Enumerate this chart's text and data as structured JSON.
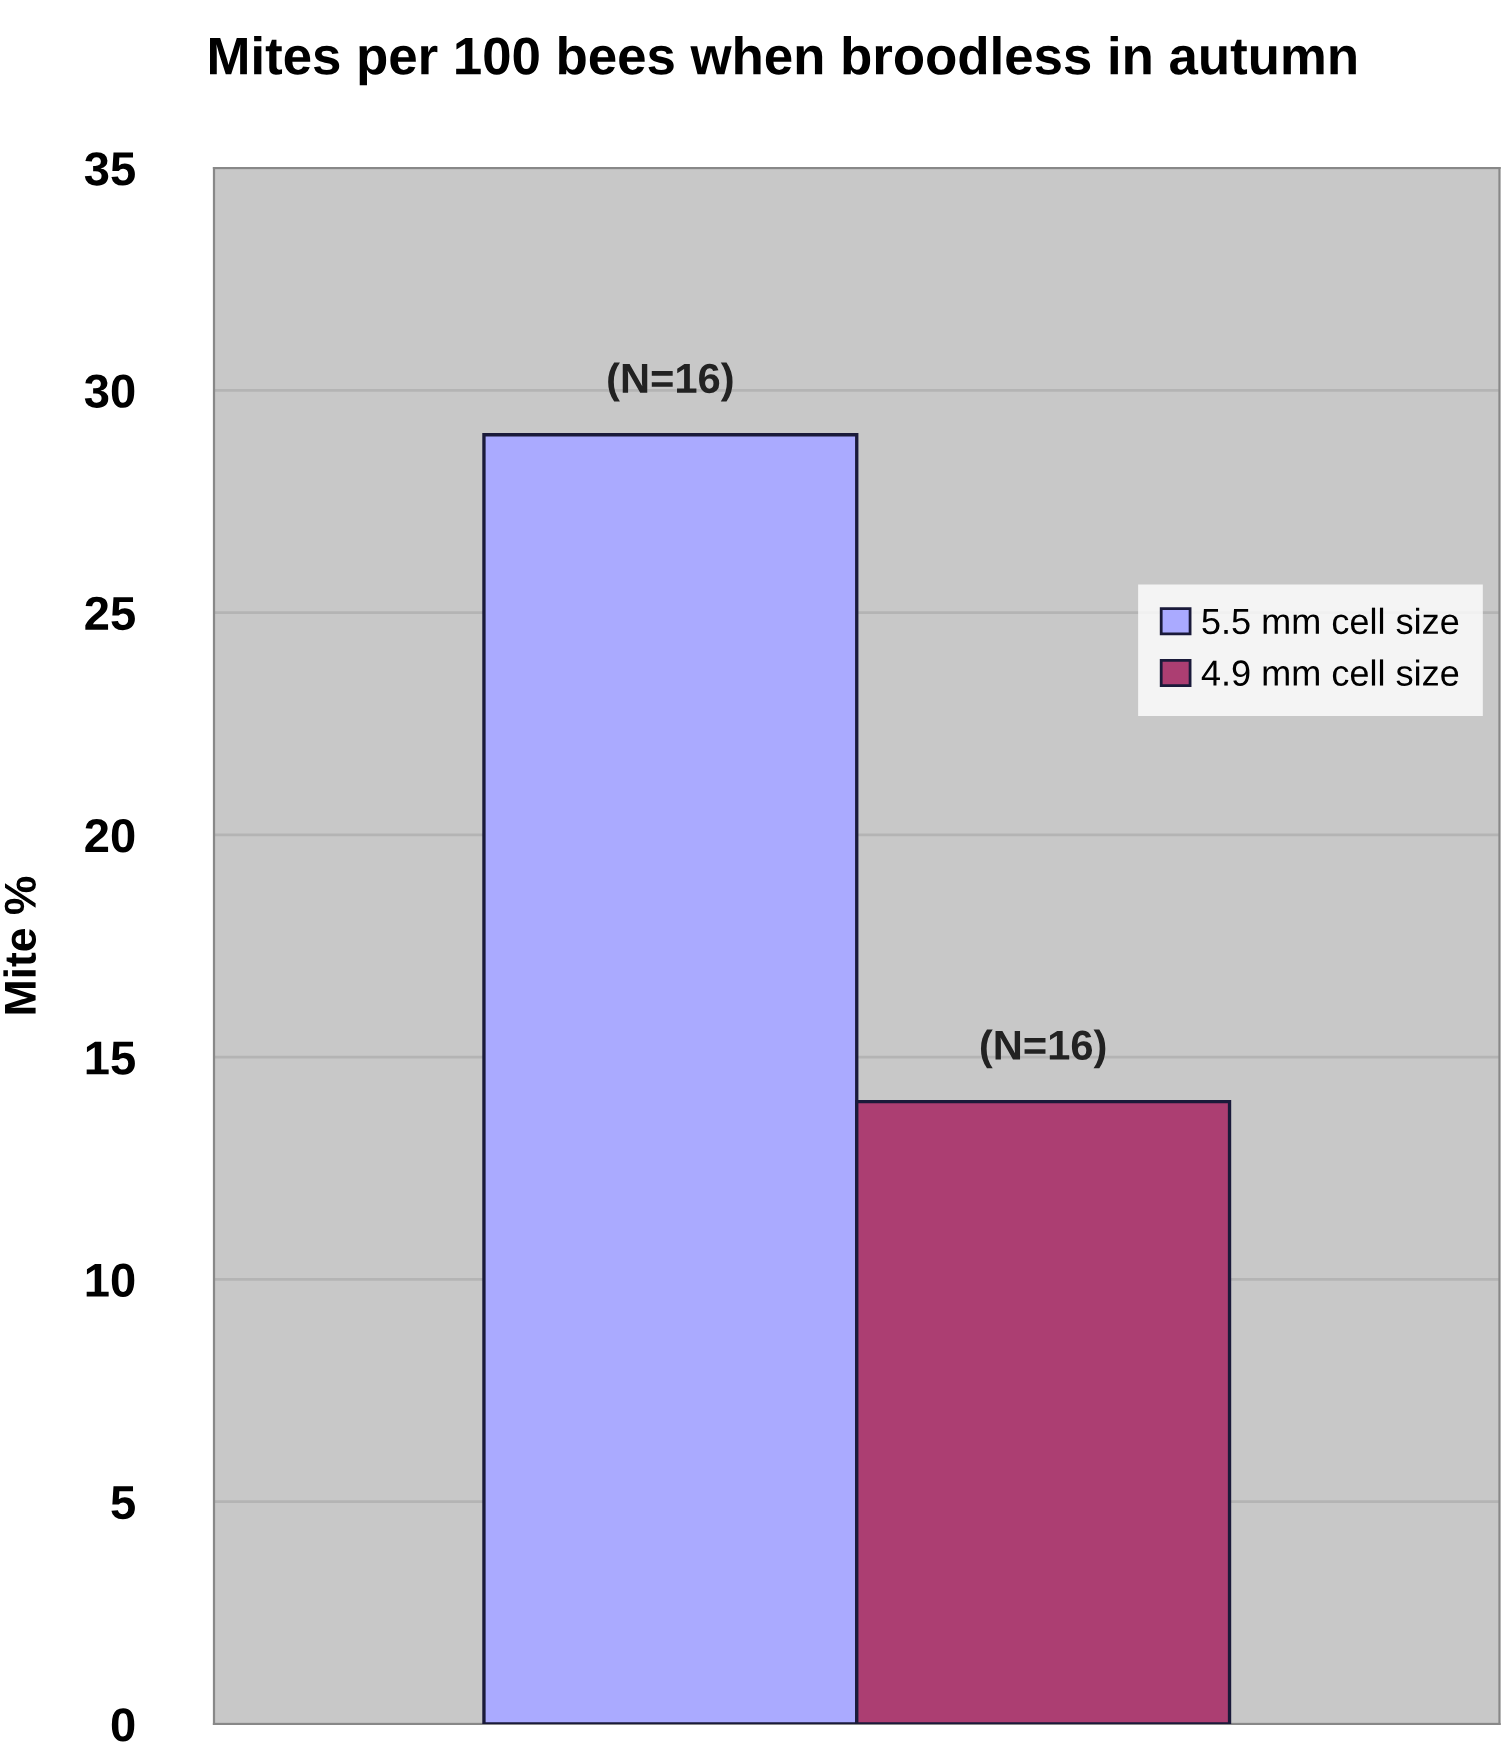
{
  "chart_data": {
    "type": "bar",
    "title": "Mites per 100 bees when broodless in autumn",
    "ylabel": "Mite %",
    "categories": [
      null
    ],
    "series": [
      {
        "name": "5.5 mm cell size",
        "color": "#aaaaff",
        "values": [
          29
        ]
      },
      {
        "name": "4.9 mm cell size",
        "color": "#ac3e72",
        "values": [
          14
        ]
      }
    ],
    "annotations": [
      {
        "text": "(N=16)",
        "y": 29
      },
      {
        "text": "(N=16)",
        "y": 14
      }
    ],
    "ylim": [
      0,
      35
    ],
    "yticks": [
      0,
      5,
      10,
      15,
      20,
      25,
      30,
      35
    ],
    "grid": "y",
    "legend": "right"
  }
}
